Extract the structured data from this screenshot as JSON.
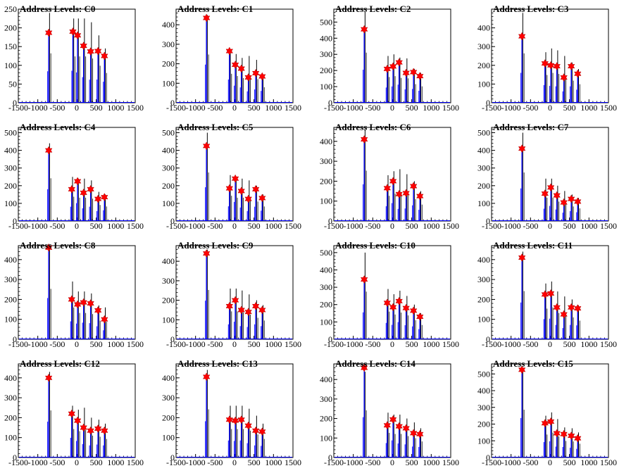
{
  "chart_data": [
    {
      "type": "bar",
      "title": "Address Levels: C0",
      "xlim": [
        -1500,
        1500
      ],
      "ylim": [
        0,
        250
      ],
      "yticks": [
        0,
        50,
        100,
        150,
        200,
        250
      ],
      "xticks": [
        -1500,
        -1000,
        -500,
        0,
        500,
        1000,
        1500
      ],
      "peaks": {
        "x": [
          -720,
          -100,
          20,
          175,
          355,
          545,
          710
        ],
        "y": [
          240,
          225,
          225,
          225,
          215,
          180,
          145
        ]
      },
      "markers": {
        "x": [
          -720,
          -100,
          20,
          175,
          355,
          545,
          710
        ],
        "y": [
          187,
          190,
          180,
          152,
          137,
          138,
          125
        ]
      }
    },
    {
      "type": "bar",
      "title": "Address Levels: C1",
      "xlim": [
        -1500,
        1500
      ],
      "ylim": [
        0,
        480
      ],
      "yticks": [
        0,
        100,
        200,
        300,
        400
      ],
      "xticks": [
        -1500,
        -1000,
        -500,
        0,
        500,
        1000,
        1500
      ],
      "peaks": {
        "x": [
          -720,
          -130,
          20,
          175,
          355,
          545,
          710
        ],
        "y": [
          450,
          270,
          250,
          230,
          240,
          220,
          145
        ]
      },
      "markers": {
        "x": [
          -720,
          -130,
          20,
          175,
          355,
          545,
          710
        ],
        "y": [
          435,
          265,
          195,
          175,
          130,
          152,
          135
        ]
      }
    },
    {
      "type": "bar",
      "title": "Address Levels: C2",
      "xlim": [
        -1500,
        1500
      ],
      "ylim": [
        0,
        580
      ],
      "yticks": [
        0,
        100,
        200,
        300,
        400,
        500
      ],
      "xticks": [
        -1500,
        -1000,
        -500,
        0,
        500,
        1000,
        1500
      ],
      "peaks": {
        "x": [
          -720,
          -130,
          20,
          175,
          355,
          545,
          710
        ],
        "y": [
          565,
          290,
          300,
          280,
          275,
          210,
          185
        ]
      },
      "markers": {
        "x": [
          -720,
          -130,
          20,
          175,
          355,
          545,
          710
        ],
        "y": [
          455,
          210,
          225,
          250,
          185,
          190,
          165
        ]
      }
    },
    {
      "type": "bar",
      "title": "Address Levels: C3",
      "xlim": [
        -1500,
        1500
      ],
      "ylim": [
        0,
        500
      ],
      "yticks": [
        0,
        100,
        200,
        300,
        400
      ],
      "xticks": [
        -1500,
        -1000,
        -500,
        0,
        500,
        1000,
        1500
      ],
      "peaks": {
        "x": [
          -720,
          -130,
          20,
          175,
          355,
          545,
          710
        ],
        "y": [
          480,
          270,
          290,
          280,
          250,
          215,
          180
        ]
      },
      "markers": {
        "x": [
          -720,
          -130,
          20,
          175,
          355,
          545,
          710
        ],
        "y": [
          355,
          210,
          200,
          195,
          135,
          195,
          155
        ]
      }
    },
    {
      "type": "bar",
      "title": "Address Levels: C4",
      "xlim": [
        -1500,
        1500
      ],
      "ylim": [
        0,
        530
      ],
      "yticks": [
        0,
        100,
        200,
        300,
        400,
        500
      ],
      "xticks": [
        -1500,
        -1000,
        -500,
        0,
        500,
        1000,
        1500
      ],
      "peaks": {
        "x": [
          -720,
          -130,
          20,
          175,
          355,
          545,
          710
        ],
        "y": [
          440,
          250,
          240,
          240,
          230,
          165,
          150
        ]
      },
      "markers": {
        "x": [
          -720,
          -130,
          20,
          175,
          355,
          545,
          710
        ],
        "y": [
          400,
          180,
          225,
          160,
          180,
          125,
          135
        ]
      }
    },
    {
      "type": "bar",
      "title": "Address Levels: C5",
      "xlim": [
        -1500,
        1500
      ],
      "ylim": [
        0,
        530
      ],
      "yticks": [
        0,
        100,
        200,
        300,
        400,
        500
      ],
      "xticks": [
        -1500,
        -1000,
        -500,
        0,
        500,
        1000,
        1500
      ],
      "peaks": {
        "x": [
          -720,
          -130,
          20,
          175,
          355,
          545,
          710
        ],
        "y": [
          500,
          260,
          240,
          240,
          230,
          200,
          150
        ]
      },
      "markers": {
        "x": [
          -720,
          -130,
          20,
          175,
          355,
          545,
          710
        ],
        "y": [
          425,
          185,
          240,
          170,
          125,
          180,
          130
        ]
      }
    },
    {
      "type": "bar",
      "title": "Address Levels: C6",
      "xlim": [
        -1500,
        1500
      ],
      "ylim": [
        0,
        470
      ],
      "yticks": [
        0,
        100,
        200,
        300,
        400
      ],
      "xticks": [
        -1500,
        -1000,
        -500,
        0,
        500,
        1000,
        1500
      ],
      "peaks": {
        "x": [
          -720,
          -130,
          20,
          175,
          355,
          545,
          710
        ],
        "y": [
          460,
          230,
          250,
          260,
          235,
          200,
          150
        ]
      },
      "markers": {
        "x": [
          -720,
          -130,
          20,
          175,
          355,
          545,
          710
        ],
        "y": [
          410,
          165,
          200,
          135,
          140,
          175,
          125
        ]
      }
    },
    {
      "type": "bar",
      "title": "Address Levels: C7",
      "xlim": [
        -1500,
        1500
      ],
      "ylim": [
        0,
        530
      ],
      "yticks": [
        0,
        100,
        200,
        300,
        400,
        500
      ],
      "xticks": [
        -1500,
        -1000,
        -500,
        0,
        500,
        1000,
        1500
      ],
      "peaks": {
        "x": [
          -720,
          -130,
          20,
          175,
          355,
          545,
          710
        ],
        "y": [
          500,
          240,
          240,
          200,
          170,
          150,
          130
        ]
      },
      "markers": {
        "x": [
          -720,
          -130,
          20,
          175,
          355,
          545,
          710
        ],
        "y": [
          410,
          155,
          190,
          145,
          105,
          125,
          110
        ]
      }
    },
    {
      "type": "bar",
      "title": "Address Levels: C8",
      "xlim": [
        -1500,
        1500
      ],
      "ylim": [
        0,
        470
      ],
      "yticks": [
        0,
        100,
        200,
        300,
        400
      ],
      "xticks": [
        -1500,
        -1000,
        -500,
        0,
        500,
        1000,
        1500
      ],
      "peaks": {
        "x": [
          -720,
          -130,
          20,
          175,
          355,
          545,
          710
        ],
        "y": [
          460,
          290,
          240,
          240,
          230,
          170,
          160
        ]
      },
      "markers": {
        "x": [
          -720,
          -130,
          20,
          175,
          355,
          545,
          710
        ],
        "y": [
          460,
          200,
          175,
          185,
          180,
          145,
          100
        ]
      }
    },
    {
      "type": "bar",
      "title": "Address Levels: C9",
      "xlim": [
        -1500,
        1500
      ],
      "ylim": [
        0,
        480
      ],
      "yticks": [
        0,
        100,
        200,
        300,
        400
      ],
      "xticks": [
        -1500,
        -1000,
        -500,
        0,
        500,
        1000,
        1500
      ],
      "peaks": {
        "x": [
          -720,
          -130,
          20,
          175,
          355,
          545,
          710
        ],
        "y": [
          460,
          260,
          260,
          250,
          230,
          200,
          175
        ]
      },
      "markers": {
        "x": [
          -720,
          -130,
          20,
          175,
          355,
          545,
          710
        ],
        "y": [
          440,
          170,
          200,
          150,
          140,
          170,
          150
        ]
      }
    },
    {
      "type": "bar",
      "title": "Address Levels: C10",
      "xlim": [
        -1500,
        1500
      ],
      "ylim": [
        0,
        540
      ],
      "yticks": [
        0,
        100,
        200,
        300,
        400,
        500
      ],
      "xticks": [
        -1500,
        -1000,
        -500,
        0,
        500,
        1000,
        1500
      ],
      "peaks": {
        "x": [
          -720,
          -130,
          20,
          175,
          355,
          545,
          710
        ],
        "y": [
          500,
          290,
          260,
          280,
          250,
          200,
          150
        ]
      },
      "markers": {
        "x": [
          -720,
          -130,
          20,
          175,
          355,
          545,
          710
        ],
        "y": [
          345,
          210,
          185,
          220,
          180,
          165,
          130
        ]
      }
    },
    {
      "type": "bar",
      "title": "Address Levels: C11",
      "xlim": [
        -1500,
        1500
      ],
      "ylim": [
        0,
        470
      ],
      "yticks": [
        0,
        100,
        200,
        300,
        400
      ],
      "xticks": [
        -1500,
        -1000,
        -500,
        0,
        500,
        1000,
        1500
      ],
      "peaks": {
        "x": [
          -720,
          -130,
          20,
          175,
          355,
          545,
          710
        ],
        "y": [
          440,
          280,
          290,
          240,
          215,
          200,
          170
        ]
      },
      "markers": {
        "x": [
          -720,
          -130,
          20,
          175,
          355,
          545,
          710
        ],
        "y": [
          410,
          225,
          230,
          160,
          125,
          160,
          155
        ]
      }
    },
    {
      "type": "bar",
      "title": "Address Levels: C12",
      "xlim": [
        -1500,
        1500
      ],
      "ylim": [
        0,
        470
      ],
      "yticks": [
        0,
        100,
        200,
        300,
        400
      ],
      "xticks": [
        -1500,
        -1000,
        -500,
        0,
        500,
        1000,
        1500
      ],
      "peaks": {
        "x": [
          -720,
          -130,
          20,
          175,
          355,
          545,
          710
        ],
        "y": [
          430,
          260,
          240,
          250,
          200,
          190,
          170
        ]
      },
      "markers": {
        "x": [
          -720,
          -130,
          20,
          175,
          355,
          545,
          710
        ],
        "y": [
          400,
          220,
          185,
          150,
          135,
          145,
          135
        ]
      }
    },
    {
      "type": "bar",
      "title": "Address Levels: C13",
      "xlim": [
        -1500,
        1500
      ],
      "ylim": [
        0,
        470
      ],
      "yticks": [
        0,
        100,
        200,
        300,
        400
      ],
      "xticks": [
        -1500,
        -1000,
        -500,
        0,
        500,
        1000,
        1500
      ],
      "peaks": {
        "x": [
          -720,
          -130,
          20,
          175,
          355,
          545,
          710
        ],
        "y": [
          440,
          260,
          260,
          260,
          245,
          210,
          170
        ]
      },
      "markers": {
        "x": [
          -720,
          -130,
          20,
          175,
          355,
          545,
          710
        ],
        "y": [
          405,
          190,
          185,
          190,
          160,
          135,
          130
        ]
      }
    },
    {
      "type": "bar",
      "title": "Address Levels: C14",
      "xlim": [
        -1500,
        1500
      ],
      "ylim": [
        0,
        480
      ],
      "yticks": [
        0,
        100,
        200,
        300,
        400
      ],
      "xticks": [
        -1500,
        -1000,
        -500,
        0,
        500,
        1000,
        1500
      ],
      "peaks": {
        "x": [
          -720,
          -130,
          20,
          175,
          355,
          545,
          710
        ],
        "y": [
          440,
          230,
          220,
          220,
          200,
          180,
          150
        ]
      },
      "markers": {
        "x": [
          -720,
          -130,
          20,
          175,
          355,
          545,
          710
        ],
        "y": [
          460,
          165,
          195,
          160,
          150,
          125,
          120
        ]
      }
    },
    {
      "type": "bar",
      "title": "Address Levels: C15",
      "xlim": [
        -1500,
        1500
      ],
      "ylim": [
        0,
        560
      ],
      "yticks": [
        0,
        100,
        200,
        300,
        400,
        500
      ],
      "xticks": [
        -1500,
        -1000,
        -500,
        0,
        500,
        1000,
        1500
      ],
      "peaks": {
        "x": [
          -720,
          -130,
          20,
          175,
          355,
          545,
          710
        ],
        "y": [
          520,
          250,
          270,
          230,
          180,
          175,
          150
        ]
      },
      "markers": {
        "x": [
          -720,
          -130,
          20,
          175,
          355,
          545,
          710
        ],
        "y": [
          525,
          205,
          215,
          145,
          140,
          130,
          115
        ]
      }
    }
  ],
  "colors": {
    "histogram": "#0000ff",
    "peak_spikes": "#000000",
    "markers": "#ff0000",
    "axes": "#000000"
  }
}
